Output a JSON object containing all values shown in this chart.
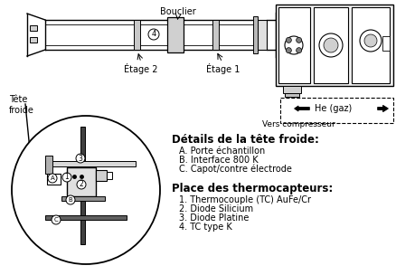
{
  "background_color": "#ffffff",
  "text_color": "#000000",
  "label_bouclier": "Bouclier",
  "label_etage2": "Étage 2",
  "label_etage1": "Étage 1",
  "label_tete_froide": "Tête\nfroide",
  "label_details_title": "Détails de la tête froide:",
  "label_A": "A. Porte échantillon",
  "label_B": "B. Interface 800 K",
  "label_C": "C. Capot/contre électrode",
  "label_place_title": "Place des thermocapteurs:",
  "label_1": "1. Thermocouple (TC) AuFe/Cr",
  "label_2": "2. Diode Silicium",
  "label_3": "3. Diode Platine",
  "label_4": "4. TC type K",
  "label_he": "He (gaz)",
  "label_vers": "Vers compresseur",
  "font_size_main": 7.0,
  "font_size_title": 8.5
}
